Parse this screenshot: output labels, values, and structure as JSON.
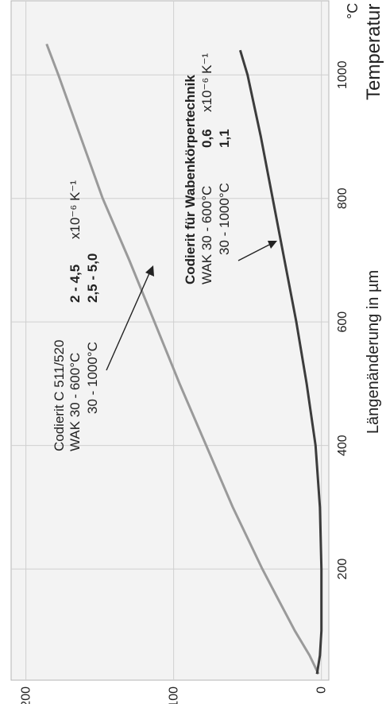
{
  "chart_data": {
    "type": "line",
    "title": "",
    "xlabel": "Temperatur",
    "xunit": "°C",
    "ylabel": "Längenänderung in µm",
    "xlim": [
      20,
      1120
    ],
    "ylim": [
      -5,
      210
    ],
    "x_ticks": [
      200,
      400,
      600,
      800,
      1000
    ],
    "y_ticks": [
      0,
      100,
      200
    ],
    "grid": true,
    "series": [
      {
        "name": "Codierit C 511/520",
        "color": "#9a9a9a",
        "points": [
          [
            30,
            2
          ],
          [
            60,
            8
          ],
          [
            100,
            18
          ],
          [
            150,
            29
          ],
          [
            200,
            40
          ],
          [
            300,
            60
          ],
          [
            400,
            78
          ],
          [
            500,
            96
          ],
          [
            600,
            113
          ],
          [
            700,
            130
          ],
          [
            800,
            148
          ],
          [
            900,
            163
          ],
          [
            1000,
            178
          ],
          [
            1050,
            186
          ]
        ]
      },
      {
        "name": "Codierit für Wabenkörpertechnik",
        "color": "#3c3c3c",
        "points": [
          [
            30,
            3
          ],
          [
            60,
            1
          ],
          [
            100,
            0
          ],
          [
            200,
            0
          ],
          [
            300,
            1
          ],
          [
            400,
            4
          ],
          [
            500,
            10
          ],
          [
            600,
            17
          ],
          [
            700,
            25
          ],
          [
            800,
            33
          ],
          [
            900,
            41
          ],
          [
            1000,
            50
          ],
          [
            1040,
            55
          ]
        ]
      }
    ],
    "annotations": [
      {
        "target": "Codierit C 511/520",
        "lines": [
          {
            "label": "Codierit C 511/520",
            "value": ""
          },
          {
            "label": "WAK 30 - 600°C",
            "value": "2 - 4,5",
            "unit": "x10⁻⁶ K⁻¹"
          },
          {
            "label": "30 - 1000°C",
            "value": "2,5 - 5,0"
          }
        ]
      },
      {
        "target": "Codierit für Wabenkörpertechnik",
        "lines": [
          {
            "label": "Codierit für Wabenkörpertechnik",
            "value": ""
          },
          {
            "label": "WAK 30 - 600°C",
            "value": "0,6",
            "unit": "x10⁻⁶ K⁻¹"
          },
          {
            "label": "30 - 1000°C",
            "value": "1,1"
          }
        ]
      }
    ]
  }
}
